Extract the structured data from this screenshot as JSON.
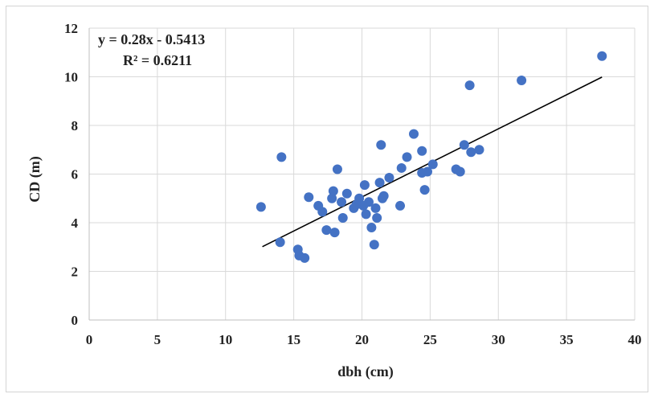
{
  "chart_data": {
    "type": "scatter",
    "title": "",
    "xlabel": "dbh (cm)",
    "ylabel": "CD (m)",
    "xlim": [
      0,
      40
    ],
    "ylim": [
      0,
      12
    ],
    "xticks": [
      0,
      5,
      10,
      15,
      20,
      25,
      30,
      35,
      40
    ],
    "yticks": [
      0,
      2,
      4,
      6,
      8,
      10,
      12
    ],
    "grid": true,
    "legend": "none",
    "point_color": "#4472c4",
    "trendline_color": "#000000",
    "trendline": {
      "slope": 0.28,
      "intercept": -0.5413,
      "x_range": [
        12.7,
        37.6
      ],
      "equation_label": "y = 0.28x - 0.5413",
      "r2_label": "R² = 0.6211"
    },
    "points": [
      [
        12.6,
        4.65
      ],
      [
        14.0,
        3.2
      ],
      [
        14.1,
        6.7
      ],
      [
        15.3,
        2.9
      ],
      [
        15.4,
        2.65
      ],
      [
        15.8,
        2.55
      ],
      [
        16.1,
        5.05
      ],
      [
        16.8,
        4.7
      ],
      [
        17.1,
        4.45
      ],
      [
        17.4,
        3.7
      ],
      [
        17.8,
        5.0
      ],
      [
        17.9,
        5.3
      ],
      [
        18.0,
        3.6
      ],
      [
        18.2,
        6.2
      ],
      [
        18.5,
        4.85
      ],
      [
        18.6,
        4.2
      ],
      [
        18.9,
        5.2
      ],
      [
        19.4,
        4.6
      ],
      [
        19.6,
        4.75
      ],
      [
        19.8,
        5.0
      ],
      [
        20.1,
        4.7
      ],
      [
        20.2,
        5.55
      ],
      [
        20.3,
        4.35
      ],
      [
        20.5,
        4.85
      ],
      [
        20.7,
        3.8
      ],
      [
        20.9,
        3.1
      ],
      [
        21.0,
        4.6
      ],
      [
        21.1,
        4.2
      ],
      [
        21.3,
        5.65
      ],
      [
        21.4,
        7.2
      ],
      [
        21.5,
        5.0
      ],
      [
        21.6,
        5.1
      ],
      [
        22.0,
        5.85
      ],
      [
        22.8,
        4.7
      ],
      [
        22.9,
        6.25
      ],
      [
        23.3,
        6.7
      ],
      [
        23.8,
        7.65
      ],
      [
        24.4,
        6.95
      ],
      [
        24.4,
        6.05
      ],
      [
        24.6,
        5.35
      ],
      [
        24.8,
        6.1
      ],
      [
        25.2,
        6.4
      ],
      [
        26.9,
        6.2
      ],
      [
        27.2,
        6.1
      ],
      [
        27.5,
        7.2
      ],
      [
        27.9,
        9.65
      ],
      [
        28.0,
        6.9
      ],
      [
        28.6,
        7.0
      ],
      [
        31.7,
        9.85
      ],
      [
        37.6,
        10.85
      ]
    ]
  }
}
